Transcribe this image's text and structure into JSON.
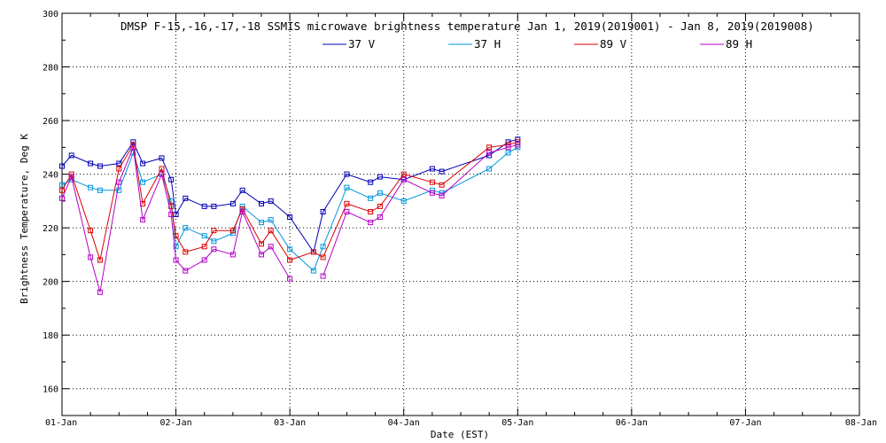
{
  "chart_data": {
    "type": "line",
    "title": "DMSP F-15,-16,-17,-18 SSMIS microwave brightness temperature Jan  1, 2019(2019001) - Jan  8, 2019(2019008)",
    "xlabel": "Date (EST)",
    "ylabel": "Brightness Temperature, Deg K",
    "ylim": [
      150,
      300
    ],
    "yticks": [
      160,
      180,
      200,
      220,
      240,
      260,
      280,
      300
    ],
    "xlim": [
      "2019-01-01 00:00",
      "2019-01-08 00:00"
    ],
    "xticks": [
      "01-Jan",
      "02-Jan",
      "03-Jan",
      "04-Jan",
      "05-Jan",
      "06-Jan",
      "07-Jan",
      "08-Jan"
    ],
    "grid": true,
    "legend_position": "top-center",
    "series": [
      {
        "name": "37 V",
        "color": "#0000b4",
        "x": [
          "2019-01-01 00:00",
          "2019-01-01 02:00",
          "2019-01-01 06:00",
          "2019-01-01 08:00",
          "2019-01-01 12:00",
          "2019-01-01 15:00",
          "2019-01-01 17:00",
          "2019-01-01 21:00",
          "2019-01-01 23:00",
          "2019-01-02 00:00",
          "2019-01-02 02:00",
          "2019-01-02 06:00",
          "2019-01-02 08:00",
          "2019-01-02 12:00",
          "2019-01-02 14:00",
          "2019-01-02 18:00",
          "2019-01-02 20:00",
          "2019-01-03 00:00",
          "2019-01-03 05:00",
          "2019-01-03 07:00",
          "2019-01-03 12:00",
          "2019-01-03 17:00",
          "2019-01-03 19:00",
          "2019-01-04 00:00",
          "2019-01-04 06:00",
          "2019-01-04 08:00",
          "2019-01-04 18:00",
          "2019-01-04 22:00",
          "2019-01-05 00:00"
        ],
        "values": [
          243,
          247,
          244,
          243,
          244,
          252,
          244,
          246,
          238,
          225,
          231,
          228,
          228,
          229,
          234,
          229,
          230,
          224,
          211,
          226,
          240,
          237,
          239,
          238,
          242,
          241,
          247,
          252,
          253
        ]
      },
      {
        "name": "37 H",
        "color": "#0096dc",
        "x": [
          "2019-01-01 00:00",
          "2019-01-01 02:00",
          "2019-01-01 06:00",
          "2019-01-01 08:00",
          "2019-01-01 12:00",
          "2019-01-01 15:00",
          "2019-01-01 17:00",
          "2019-01-01 21:00",
          "2019-01-01 23:00",
          "2019-01-02 00:00",
          "2019-01-02 02:00",
          "2019-01-02 06:00",
          "2019-01-02 08:00",
          "2019-01-02 12:00",
          "2019-01-02 14:00",
          "2019-01-02 18:00",
          "2019-01-02 20:00",
          "2019-01-03 00:00",
          "2019-01-03 05:00",
          "2019-01-03 07:00",
          "2019-01-03 12:00",
          "2019-01-03 17:00",
          "2019-01-03 19:00",
          "2019-01-04 00:00",
          "2019-01-04 06:00",
          "2019-01-04 08:00",
          "2019-01-04 18:00",
          "2019-01-04 22:00",
          "2019-01-05 00:00"
        ],
        "values": [
          236,
          238,
          235,
          234,
          234,
          248,
          237,
          240,
          230,
          213,
          220,
          217,
          215,
          218,
          228,
          222,
          223,
          212,
          204,
          213,
          235,
          231,
          233,
          230,
          234,
          233,
          242,
          248,
          250
        ]
      },
      {
        "name": "89 V",
        "color": "#dc0000",
        "x": [
          "2019-01-01 00:00",
          "2019-01-01 02:00",
          "2019-01-01 06:00",
          "2019-01-01 08:00",
          "2019-01-01 12:00",
          "2019-01-01 15:00",
          "2019-01-01 17:00",
          "2019-01-01 21:00",
          "2019-01-01 23:00",
          "2019-01-02 00:00",
          "2019-01-02 02:00",
          "2019-01-02 06:00",
          "2019-01-02 08:00",
          "2019-01-02 12:00",
          "2019-01-02 14:00",
          "2019-01-02 18:00",
          "2019-01-02 20:00",
          "2019-01-03 00:00",
          "2019-01-03 05:00",
          "2019-01-03 07:00",
          "2019-01-03 12:00",
          "2019-01-03 17:00",
          "2019-01-03 19:00",
          "2019-01-04 00:00",
          "2019-01-04 06:00",
          "2019-01-04 08:00",
          "2019-01-04 18:00",
          "2019-01-04 22:00",
          "2019-01-05 00:00"
        ],
        "values": [
          234,
          240,
          219,
          208,
          242,
          251,
          229,
          242,
          228,
          217,
          211,
          213,
          219,
          219,
          227,
          214,
          219,
          208,
          211,
          209,
          229,
          226,
          228,
          240,
          237,
          236,
          250,
          251,
          252
        ]
      },
      {
        "name": "89 H",
        "color": "#b400c8",
        "x": [
          "2019-01-01 00:00",
          "2019-01-01 02:00",
          "2019-01-01 06:00",
          "2019-01-01 08:00",
          "2019-01-01 12:00",
          "2019-01-01 15:00",
          "2019-01-01 17:00",
          "2019-01-01 21:00",
          "2019-01-01 23:00",
          "2019-01-02 00:00",
          "2019-01-02 02:00",
          "2019-01-02 06:00",
          "2019-01-02 08:00",
          "2019-01-02 12:00",
          "2019-01-02 14:00",
          "2019-01-02 18:00",
          "2019-01-02 20:00",
          "2019-01-03 00:00",
          "2019-01-03 05:00",
          "2019-01-03 07:00",
          "2019-01-03 12:00",
          "2019-01-03 17:00",
          "2019-01-03 19:00",
          "2019-01-04 00:00",
          "2019-01-04 06:00",
          "2019-01-04 08:00",
          "2019-01-04 18:00",
          "2019-01-04 22:00",
          "2019-01-05 00:00"
        ],
        "values": [
          231,
          239,
          209,
          196,
          237,
          250,
          223,
          240,
          225,
          208,
          204,
          208,
          212,
          210,
          226,
          210,
          213,
          201,
          null,
          202,
          226,
          222,
          224,
          238,
          233,
          232,
          248,
          250,
          251
        ]
      }
    ]
  }
}
